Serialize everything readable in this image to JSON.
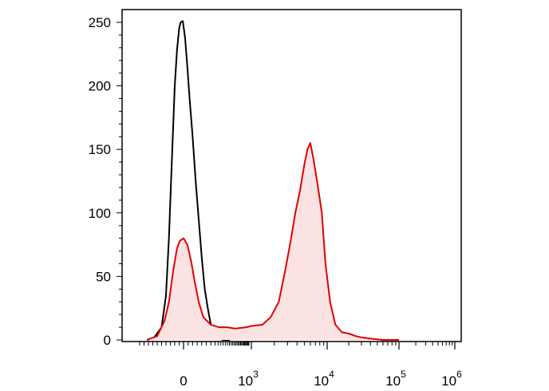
{
  "chart_data": {
    "type": "area",
    "title": "",
    "xlabel": "",
    "ylabel": "",
    "x_scale": "biexponential",
    "xlim": [
      -300,
      1000000
    ],
    "ylim": [
      0,
      255
    ],
    "grid": false,
    "legend": "none",
    "y_ticks": [
      {
        "value": 0,
        "label": "0"
      },
      {
        "value": 50,
        "label": "50"
      },
      {
        "value": 100,
        "label": "100"
      },
      {
        "value": 150,
        "label": "150"
      },
      {
        "value": 200,
        "label": "200"
      },
      {
        "value": 250,
        "label": "250"
      }
    ],
    "x_ticks": [
      {
        "value": 0,
        "base": "0",
        "exp": ""
      },
      {
        "value": 1000,
        "base": "10",
        "exp": "3"
      },
      {
        "value": 10000,
        "base": "10",
        "exp": "4"
      },
      {
        "value": 100000,
        "base": "10",
        "exp": "5"
      },
      {
        "value": 1000000,
        "base": "10",
        "exp": "6"
      }
    ],
    "series": [
      {
        "color": "#000000",
        "fill": false,
        "points": [
          [
            -250,
            0
          ],
          [
            -200,
            2
          ],
          [
            -150,
            10
          ],
          [
            -120,
            35
          ],
          [
            -100,
            80
          ],
          [
            -80,
            140
          ],
          [
            -60,
            200
          ],
          [
            -45,
            228
          ],
          [
            -30,
            245
          ],
          [
            -20,
            250
          ],
          [
            -5,
            251
          ],
          [
            10,
            238
          ],
          [
            25,
            215
          ],
          [
            40,
            190
          ],
          [
            60,
            160
          ],
          [
            80,
            125
          ],
          [
            100,
            95
          ],
          [
            120,
            65
          ],
          [
            140,
            40
          ],
          [
            160,
            25
          ],
          [
            180,
            12
          ],
          [
            200,
            5
          ],
          [
            250,
            1
          ],
          [
            300,
            0
          ],
          [
            400,
            0
          ]
        ]
      },
      {
        "color": "#e00000",
        "fill": true,
        "fill_color": "#fbe3e3",
        "points": [
          [
            -250,
            0
          ],
          [
            -180,
            3
          ],
          [
            -130,
            15
          ],
          [
            -100,
            30
          ],
          [
            -70,
            55
          ],
          [
            -45,
            72
          ],
          [
            -25,
            78
          ],
          [
            0,
            80
          ],
          [
            25,
            75
          ],
          [
            50,
            62
          ],
          [
            75,
            45
          ],
          [
            100,
            30
          ],
          [
            130,
            18
          ],
          [
            180,
            12
          ],
          [
            250,
            10
          ],
          [
            350,
            10
          ],
          [
            500,
            9
          ],
          [
            800,
            10
          ],
          [
            1000,
            11
          ],
          [
            1400,
            12
          ],
          [
            1800,
            18
          ],
          [
            2300,
            30
          ],
          [
            2800,
            55
          ],
          [
            3300,
            78
          ],
          [
            3800,
            100
          ],
          [
            4400,
            118
          ],
          [
            5000,
            138
          ],
          [
            5500,
            150
          ],
          [
            6000,
            155
          ],
          [
            6600,
            142
          ],
          [
            7500,
            122
          ],
          [
            8500,
            100
          ],
          [
            9500,
            60
          ],
          [
            11000,
            30
          ],
          [
            13000,
            12
          ],
          [
            16000,
            6
          ],
          [
            20000,
            5
          ],
          [
            25000,
            3
          ],
          [
            30000,
            2
          ],
          [
            40000,
            1
          ],
          [
            60000,
            0
          ],
          [
            100000,
            0
          ]
        ]
      }
    ]
  }
}
